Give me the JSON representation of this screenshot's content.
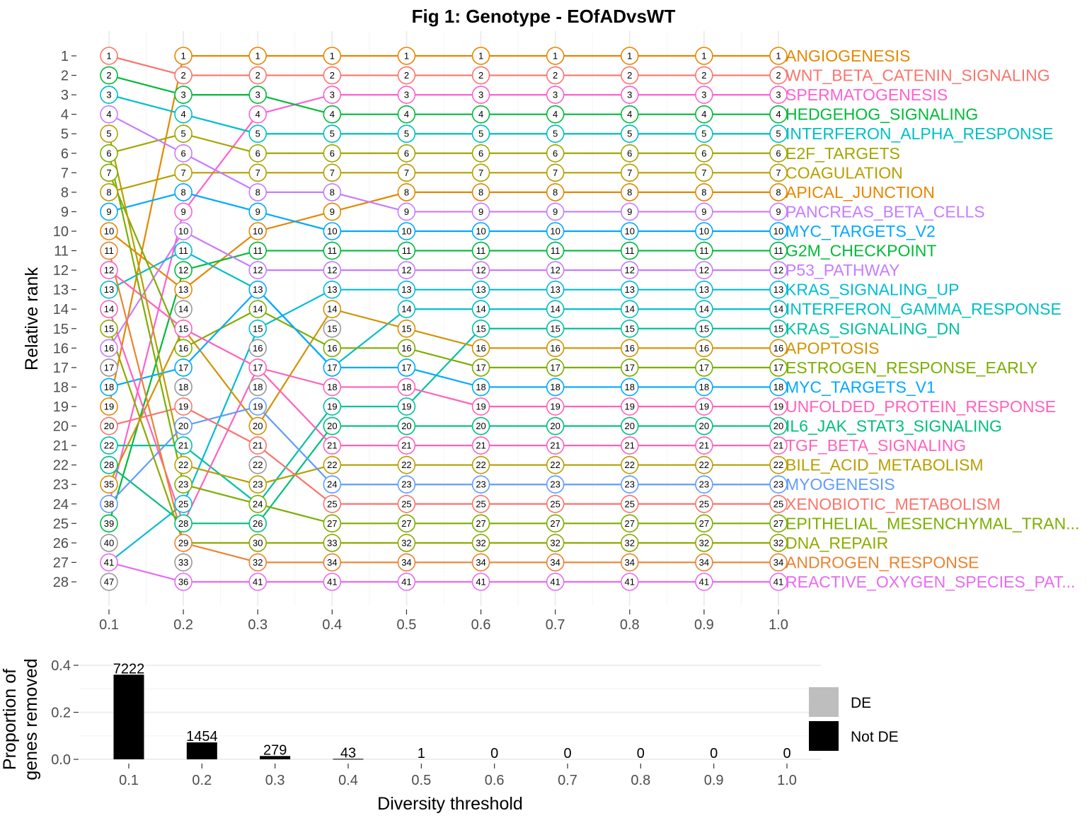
{
  "title": "Fig 1: Genotype - EOfADvsWT",
  "chart_data": [
    {
      "type": "line",
      "ylabel": "Relative rank",
      "x": [
        0.1,
        0.2,
        0.3,
        0.4,
        0.5,
        0.6,
        0.7,
        0.8,
        0.9,
        1.0
      ],
      "x_tick_labels": [
        "0.1",
        "0.2",
        "0.3",
        "0.4",
        "0.5",
        "0.6",
        "0.7",
        "0.8",
        "0.9",
        "1.0"
      ],
      "y_tick_labels": [
        "1",
        "2",
        "3",
        "4",
        "5",
        "6",
        "7",
        "8",
        "9",
        "10",
        "11",
        "12",
        "13",
        "14",
        "15",
        "16",
        "17",
        "18",
        "19",
        "20",
        "21",
        "22",
        "23",
        "24",
        "25",
        "26",
        "27",
        "28"
      ],
      "ylim": [
        1,
        28
      ],
      "y_reversed": true,
      "grid": true,
      "point_labels": [
        [
          1,
          2,
          3,
          4,
          5,
          6,
          7,
          8,
          9,
          10,
          11,
          12,
          13,
          14,
          15,
          16,
          17,
          18,
          19,
          20,
          22,
          28,
          35,
          38,
          39,
          40,
          41,
          47
        ],
        [
          1,
          2,
          3,
          4,
          5,
          6,
          7,
          8,
          9,
          10,
          11,
          12,
          13,
          14,
          15,
          16,
          17,
          18,
          19,
          20,
          21,
          22,
          23,
          25,
          28,
          29,
          33,
          36
        ],
        [
          1,
          2,
          3,
          4,
          5,
          6,
          7,
          8,
          9,
          10,
          11,
          12,
          13,
          14,
          15,
          16,
          17,
          18,
          19,
          20,
          21,
          22,
          23,
          24,
          26,
          30,
          32,
          41
        ],
        [
          1,
          2,
          3,
          4,
          5,
          6,
          7,
          8,
          9,
          10,
          11,
          12,
          13,
          14,
          15,
          16,
          17,
          18,
          19,
          20,
          21,
          22,
          24,
          25,
          27,
          33,
          34,
          41
        ],
        [
          1,
          2,
          3,
          4,
          5,
          6,
          7,
          8,
          9,
          10,
          11,
          12,
          13,
          14,
          15,
          16,
          17,
          18,
          19,
          20,
          21,
          22,
          23,
          25,
          27,
          32,
          34,
          41
        ],
        [
          1,
          2,
          3,
          4,
          5,
          6,
          7,
          8,
          9,
          10,
          11,
          12,
          13,
          14,
          15,
          16,
          17,
          18,
          19,
          20,
          21,
          22,
          23,
          25,
          27,
          32,
          34,
          41
        ],
        [
          1,
          2,
          3,
          4,
          5,
          6,
          7,
          8,
          9,
          10,
          11,
          12,
          13,
          14,
          15,
          16,
          17,
          18,
          19,
          20,
          21,
          22,
          23,
          25,
          27,
          32,
          34,
          41
        ],
        [
          1,
          2,
          3,
          4,
          5,
          6,
          7,
          8,
          9,
          10,
          11,
          12,
          13,
          14,
          15,
          16,
          17,
          18,
          19,
          20,
          21,
          22,
          23,
          25,
          27,
          32,
          34,
          41
        ],
        [
          1,
          2,
          3,
          4,
          5,
          6,
          7,
          8,
          9,
          10,
          11,
          12,
          13,
          14,
          15,
          16,
          17,
          18,
          19,
          20,
          21,
          22,
          23,
          25,
          27,
          32,
          34,
          41
        ],
        [
          1,
          2,
          3,
          4,
          5,
          6,
          7,
          8,
          9,
          10,
          11,
          12,
          13,
          14,
          15,
          16,
          17,
          18,
          19,
          20,
          21,
          22,
          23,
          25,
          27,
          32,
          34,
          41
        ]
      ],
      "series": [
        {
          "name": "ANGIOGENESIS",
          "color": "#E58700",
          "ranks": [
            19,
            1,
            1,
            1,
            1,
            1,
            1,
            1,
            1,
            1
          ]
        },
        {
          "name": "WNT_BETA_CATENIN_SIGNALING",
          "color": "#F8766D",
          "ranks": [
            1,
            2,
            2,
            2,
            2,
            2,
            2,
            2,
            2,
            2
          ]
        },
        {
          "name": "SPERMATOGENESIS",
          "color": "#FD61D1",
          "ranks": [
            24,
            9,
            4,
            3,
            3,
            3,
            3,
            3,
            3,
            3
          ]
        },
        {
          "name": "HEDGEHOG_SIGNALING",
          "color": "#00BA38",
          "ranks": [
            2,
            3,
            3,
            4,
            4,
            4,
            4,
            4,
            4,
            4
          ]
        },
        {
          "name": "INTERFERON_ALPHA_RESPONSE",
          "color": "#00BFC4",
          "ranks": [
            3,
            4,
            5,
            5,
            5,
            5,
            5,
            5,
            5,
            5
          ]
        },
        {
          "name": "E2F_TARGETS",
          "color": "#A3A500",
          "ranks": [
            6,
            5,
            6,
            6,
            6,
            6,
            6,
            6,
            6,
            6
          ]
        },
        {
          "name": "COAGULATION",
          "color": "#B79F00",
          "ranks": [
            8,
            7,
            7,
            7,
            7,
            7,
            7,
            7,
            7,
            7
          ]
        },
        {
          "name": "APICAL_JUNCTION",
          "color": "#E58700",
          "ranks": [
            10,
            13,
            10,
            9,
            8,
            8,
            8,
            8,
            8,
            8
          ]
        },
        {
          "name": "PANCREAS_BETA_CELLS",
          "color": "#C77CFF",
          "ranks": [
            4,
            6,
            8,
            8,
            9,
            9,
            9,
            9,
            9,
            9
          ]
        },
        {
          "name": "MYC_TARGETS_V2",
          "color": "#00A9FF",
          "ranks": [
            9,
            8,
            9,
            10,
            10,
            10,
            10,
            10,
            10,
            10
          ]
        },
        {
          "name": "G2M_CHECKPOINT",
          "color": "#00BA38",
          "ranks": [
            25,
            12,
            11,
            11,
            11,
            11,
            11,
            11,
            11,
            11
          ]
        },
        {
          "name": "P53_PATHWAY",
          "color": "#C77CFF",
          "ranks": [
            16,
            10,
            12,
            12,
            12,
            12,
            12,
            12,
            12,
            12
          ]
        },
        {
          "name": "KRAS_SIGNALING_UP",
          "color": "#00BCD8",
          "ranks": [
            27,
            24,
            15,
            13,
            13,
            13,
            13,
            13,
            13,
            13
          ]
        },
        {
          "name": "INTERFERON_GAMMA_RESPONSE",
          "color": "#00BFC4",
          "ranks": [
            13,
            11,
            13,
            17,
            14,
            14,
            14,
            14,
            14,
            14
          ]
        },
        {
          "name": "KRAS_SIGNALING_DN",
          "color": "#00C1A3",
          "ranks": [
            21,
            21,
            24,
            19,
            19,
            15,
            15,
            15,
            15,
            15
          ]
        },
        {
          "name": "APOPTOSIS",
          "color": "#D39200",
          "ranks": [
            23,
            15,
            20,
            14,
            15,
            16,
            16,
            16,
            16,
            16
          ]
        },
        {
          "name": "ESTROGEN_RESPONSE_EARLY",
          "color": "#7CAE00",
          "ranks": [
            7,
            16,
            14,
            16,
            16,
            17,
            17,
            17,
            17,
            17
          ]
        },
        {
          "name": "MYC_TARGETS_V1",
          "color": "#00A9FF",
          "ranks": [
            18,
            17,
            13,
            17,
            17,
            18,
            18,
            18,
            18,
            18
          ]
        },
        {
          "name": "UNFOLDED_PROTEIN_RESPONSE",
          "color": "#FF62BC",
          "ranks": [
            14,
            25,
            17,
            18,
            18,
            19,
            19,
            19,
            19,
            19
          ]
        },
        {
          "name": "IL6_JAK_STAT3_SIGNALING",
          "color": "#00BF7D",
          "ranks": [
            22,
            25,
            25,
            20,
            20,
            20,
            20,
            20,
            20,
            20
          ]
        },
        {
          "name": "TGF_BETA_SIGNALING",
          "color": "#FF62BC",
          "ranks": [
            12,
            15,
            17,
            21,
            21,
            21,
            21,
            21,
            21,
            21
          ]
        },
        {
          "name": "BILE_ACID_METABOLISM",
          "color": "#B79F00",
          "ranks": [
            5,
            22,
            23,
            22,
            22,
            22,
            22,
            22,
            22,
            22
          ]
        },
        {
          "name": "MYOGENESIS",
          "color": "#619CFF",
          "ranks": [
            24,
            20,
            19,
            23,
            23,
            23,
            23,
            23,
            23,
            23
          ]
        },
        {
          "name": "XENOBIOTIC_METABOLISM",
          "color": "#F8766D",
          "ranks": [
            20,
            19,
            21,
            24,
            24,
            24,
            24,
            24,
            24,
            24
          ]
        },
        {
          "name": "EPITHELIAL_MESENCHYMAL_TRAN...",
          "color": "#7CAE00",
          "ranks": [
            6,
            23,
            24,
            25,
            25,
            25,
            25,
            25,
            25,
            25
          ]
        },
        {
          "name": "DNA_REPAIR",
          "color": "#8FAA00",
          "ranks": [
            15,
            26,
            26,
            26,
            26,
            26,
            26,
            26,
            26,
            26
          ]
        },
        {
          "name": "ANDROGEN_RESPONSE",
          "color": "#EA8331",
          "ranks": [
            11,
            26,
            27,
            27,
            27,
            27,
            27,
            27,
            27,
            27
          ]
        },
        {
          "name": "REACTIVE_OXYGEN_SPECIES_PAT...",
          "color": "#E76BF3",
          "ranks": [
            27,
            28,
            28,
            28,
            28,
            28,
            28,
            28,
            28,
            28
          ]
        }
      ]
    },
    {
      "type": "bar",
      "xlabel": "Diversity threshold",
      "ylabel": "Proportion of\ngenes removed",
      "categories": [
        "0.1",
        "0.2",
        "0.3",
        "0.4",
        "0.5",
        "0.6",
        "0.7",
        "0.8",
        "0.9",
        "1.0"
      ],
      "y_tick_labels": [
        "0.0",
        "0.2",
        "0.4"
      ],
      "ylim": [
        0,
        0.4
      ],
      "series": [
        {
          "name": "Not DE",
          "color": "#000000",
          "values": [
            0.36,
            0.072,
            0.014,
            0.002,
            0.0,
            0.0,
            0.0,
            0.0,
            0.0,
            0.0
          ]
        },
        {
          "name": "DE",
          "color": "#BEBEBE",
          "values": [
            0,
            0,
            0,
            0,
            0,
            0,
            0,
            0,
            0,
            0
          ]
        }
      ],
      "data_labels": [
        "7222",
        "1454",
        "279",
        "43",
        "1",
        "0",
        "0",
        "0",
        "0",
        "0"
      ],
      "legend": {
        "position": "right",
        "entries": [
          {
            "label": "DE",
            "color": "#BEBEBE"
          },
          {
            "label": "Not DE",
            "color": "#000000"
          }
        ]
      },
      "grid": true
    }
  ]
}
